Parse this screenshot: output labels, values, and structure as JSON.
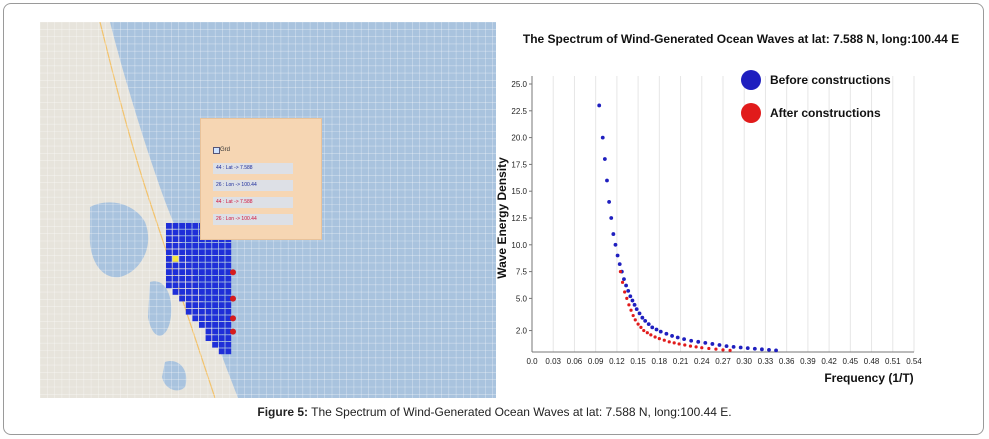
{
  "map": {
    "panel": {
      "grid_label": "Grd",
      "rows": [
        {
          "text": "44 : Lat -> 7.588",
          "color": "#1a2a9a"
        },
        {
          "text": "26 : Lon -> 100.44",
          "color": "#1a2a9a"
        },
        {
          "text": "44 : Lat -> 7.588",
          "color": "#d0103a"
        },
        {
          "text": "26 : Lon -> 100.44",
          "color": "#d0103a"
        }
      ]
    },
    "colors": {
      "sea": "#a9c3de",
      "land": "#e7e4dc",
      "grid_cells": "#1f2fd8",
      "marker_red": "#d61c1c",
      "marker_yellow": "#f5e642"
    }
  },
  "chart_data": {
    "type": "scatter",
    "title": "The Spectrum of Wind-Generated Ocean Waves at lat: 7.588 N, long:100.44 E",
    "xlabel": "Frequency (1/T)",
    "ylabel": "Wave Energy Density",
    "xlim": [
      0,
      0.54
    ],
    "ylim": [
      0,
      25
    ],
    "x_ticks": [
      "0.0",
      "0.03",
      "0.06",
      "0.09",
      "0.12",
      "0.15",
      "0.18",
      "0.21",
      "0.24",
      "0.27",
      "0.30",
      "0.33",
      "0.36",
      "0.39",
      "0.42",
      "0.45",
      "0.48",
      "0.51",
      "0.54"
    ],
    "y_ticks": [
      "2.0",
      "5.0",
      "7.5",
      "10.0",
      "12.5",
      "15.0",
      "17.5",
      "20.0",
      "22.5",
      "25.0"
    ],
    "grid": "vertical",
    "legend": "top-right",
    "series": [
      {
        "name": "Before constructions",
        "color": "#1f1fbf",
        "x": [
          0.095,
          0.1,
          0.103,
          0.106,
          0.109,
          0.112,
          0.115,
          0.118,
          0.121,
          0.124,
          0.127,
          0.13,
          0.133,
          0.136,
          0.139,
          0.142,
          0.145,
          0.148,
          0.152,
          0.156,
          0.16,
          0.165,
          0.17,
          0.176,
          0.182,
          0.19,
          0.198,
          0.206,
          0.215,
          0.225,
          0.235,
          0.245,
          0.255,
          0.265,
          0.275,
          0.285,
          0.295,
          0.305,
          0.315,
          0.325,
          0.335,
          0.345
        ],
        "y": [
          23.0,
          20.0,
          18.0,
          16.0,
          14.0,
          12.5,
          11.0,
          10.0,
          9.0,
          8.2,
          7.5,
          6.8,
          6.2,
          5.7,
          5.2,
          4.8,
          4.4,
          4.0,
          3.6,
          3.2,
          2.9,
          2.6,
          2.3,
          2.1,
          1.9,
          1.7,
          1.5,
          1.35,
          1.2,
          1.05,
          0.95,
          0.85,
          0.75,
          0.65,
          0.55,
          0.48,
          0.42,
          0.36,
          0.3,
          0.25,
          0.2,
          0.15
        ]
      },
      {
        "name": "After constructions",
        "color": "#e11b1b",
        "x": [
          0.125,
          0.128,
          0.131,
          0.134,
          0.137,
          0.14,
          0.143,
          0.146,
          0.15,
          0.154,
          0.158,
          0.163,
          0.168,
          0.174,
          0.18,
          0.187,
          0.194,
          0.201,
          0.208,
          0.216,
          0.224,
          0.232,
          0.24,
          0.25,
          0.26,
          0.27,
          0.28
        ],
        "y": [
          7.5,
          6.5,
          5.6,
          5.0,
          4.4,
          3.9,
          3.4,
          3.0,
          2.6,
          2.3,
          2.0,
          1.8,
          1.6,
          1.4,
          1.25,
          1.1,
          0.95,
          0.85,
          0.75,
          0.65,
          0.55,
          0.48,
          0.4,
          0.33,
          0.27,
          0.2,
          0.15
        ]
      }
    ]
  },
  "caption": {
    "label": "Figure 5:",
    "text": " The Spectrum of Wind-Generated Ocean Waves at lat: 7.588 N, long:100.44 E."
  }
}
